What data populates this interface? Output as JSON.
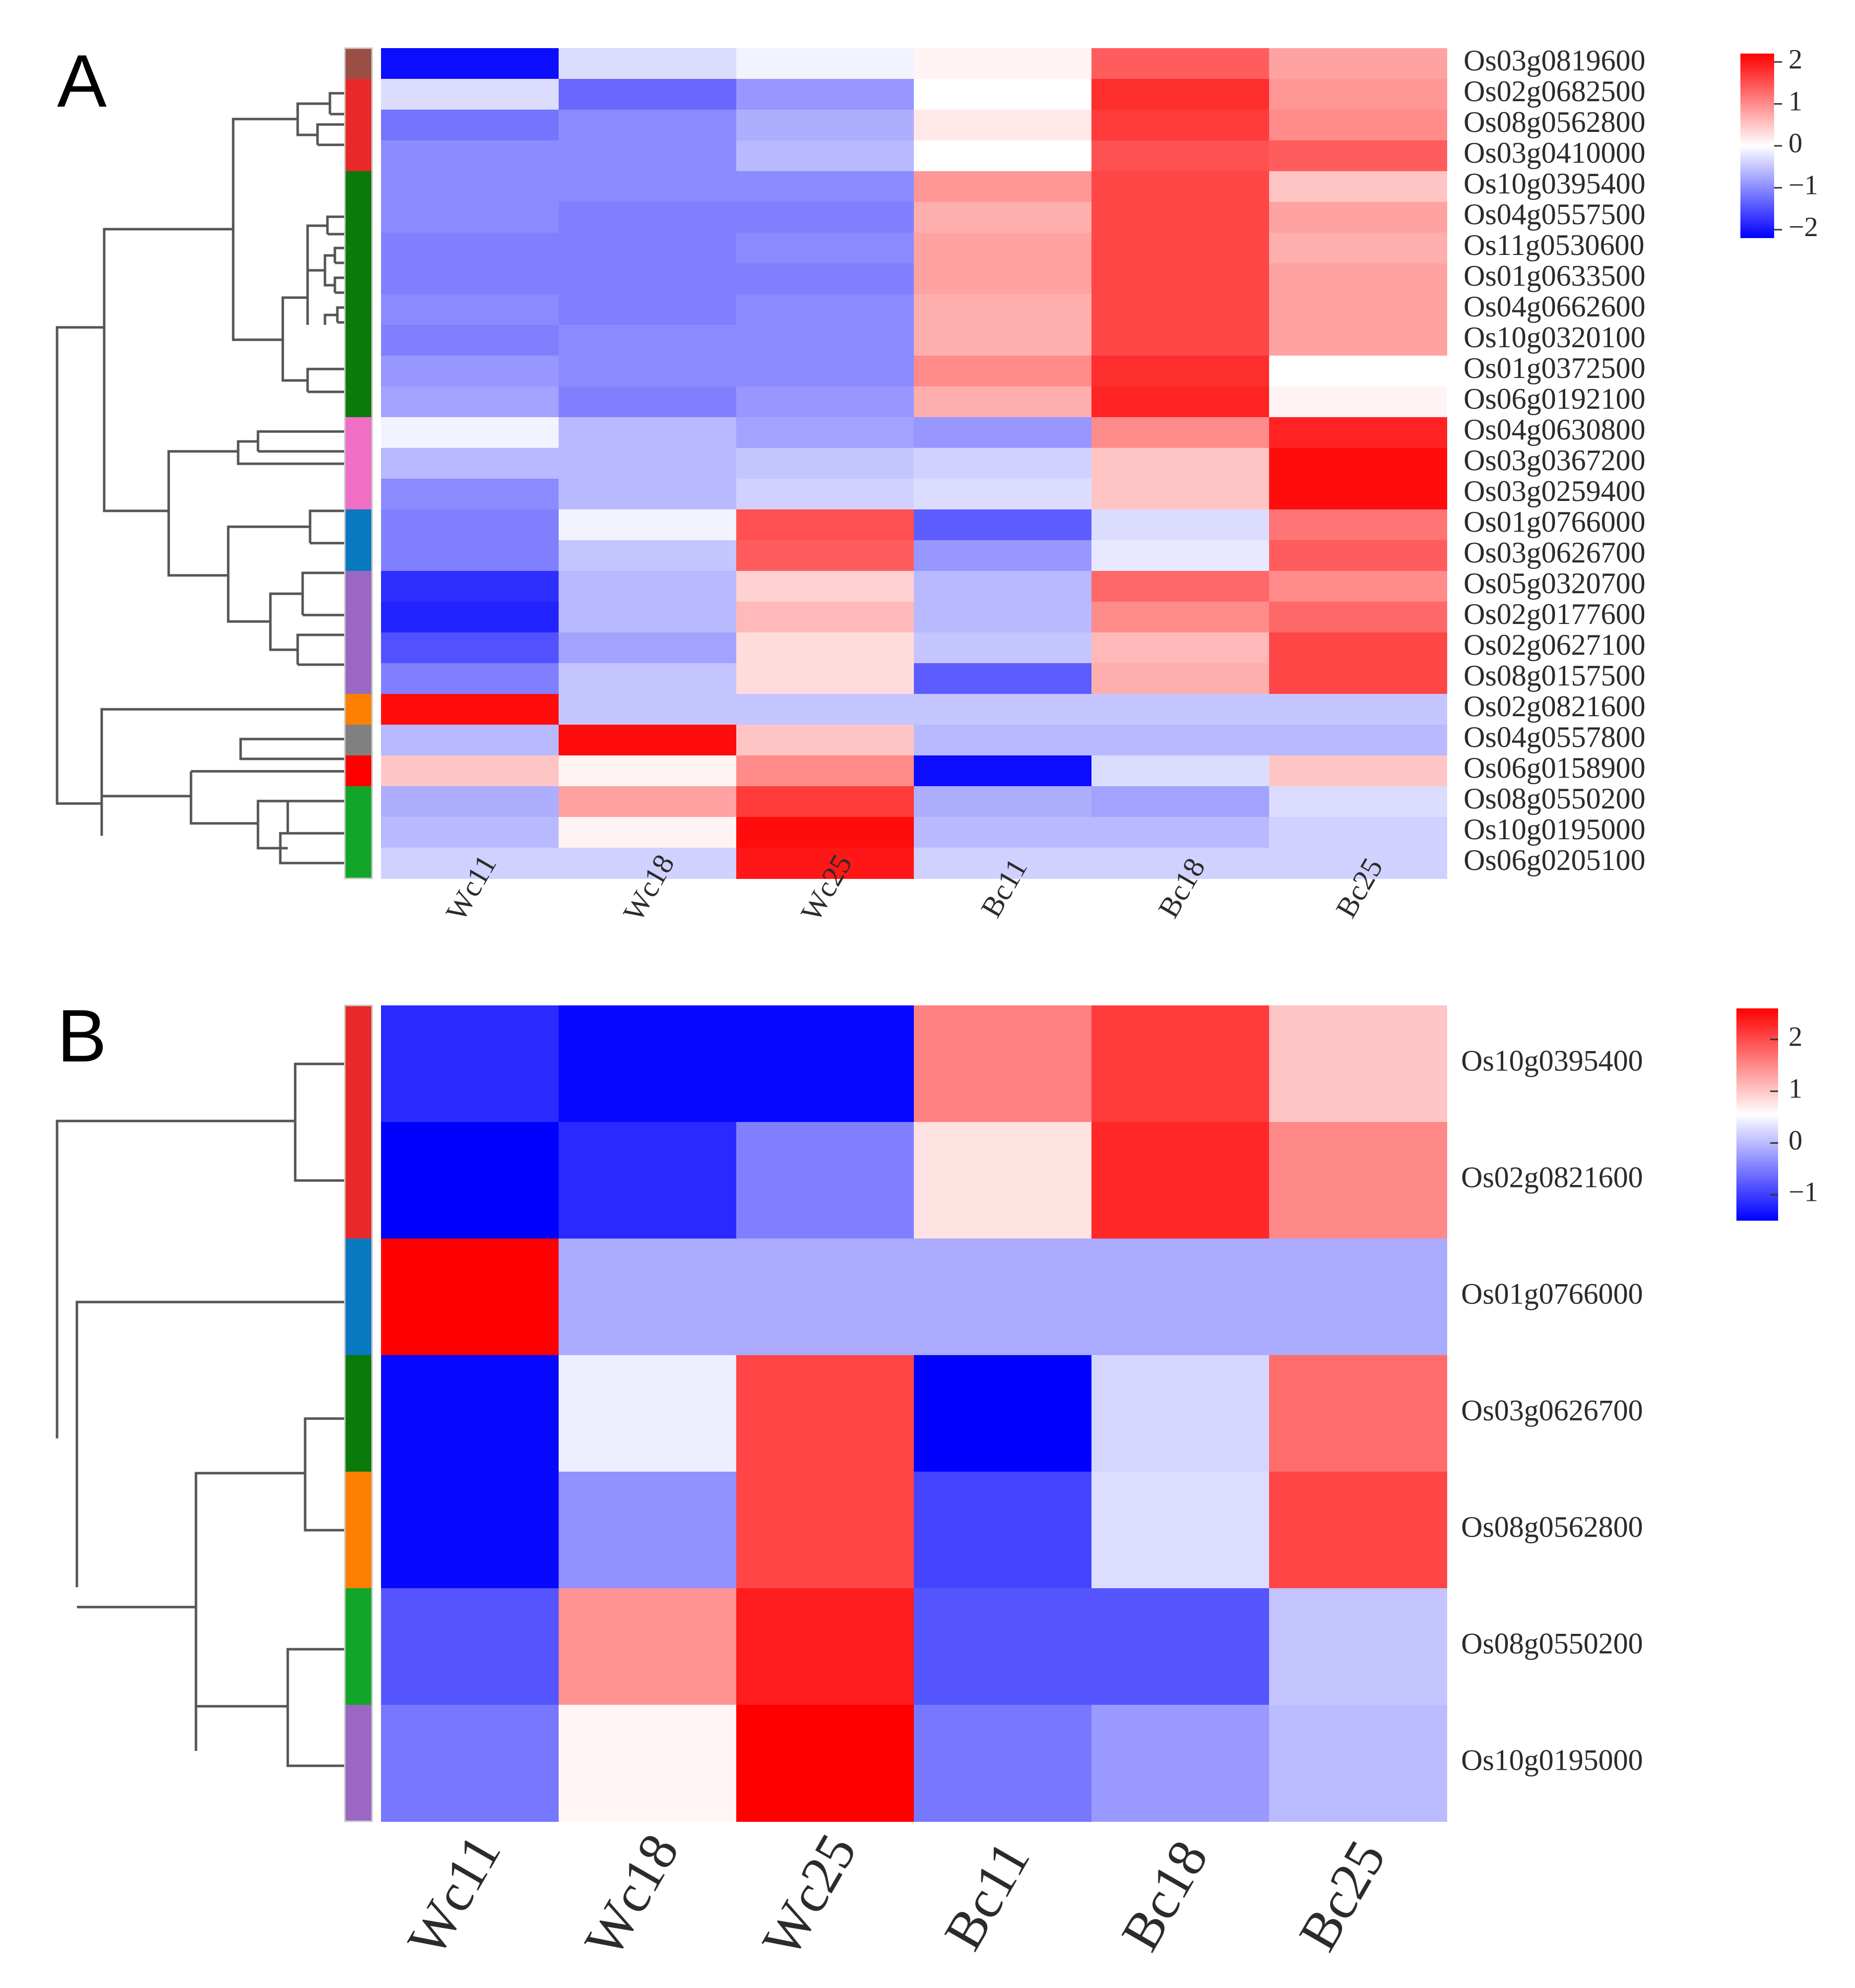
{
  "figure": {
    "panel_labels": [
      "A",
      "B"
    ]
  },
  "chart_data": [
    {
      "type": "heatmap",
      "panel": "A",
      "columns": [
        "Wc11",
        "Wc18",
        "Wc25",
        "Bc11",
        "Bc18",
        "Bc25"
      ],
      "rows": [
        "Os03g0819600",
        "Os02g0682500",
        "Os08g0562800",
        "Os03g0410000",
        "Os10g0395400",
        "Os04g0557500",
        "Os11g0530600",
        "Os01g0633500",
        "Os04g0662600",
        "Os10g0320100",
        "Os01g0372500",
        "Os06g0192100",
        "Os04g0630800",
        "Os03g0367200",
        "Os03g0259400",
        "Os01g0766000",
        "Os03g0626700",
        "Os05g0320700",
        "Os02g0177600",
        "Os02g0627100",
        "Os08g0157500",
        "Os02g0821600",
        "Os04g0557800",
        "Os06g0158900",
        "Os08g0550200",
        "Os10g0195000",
        "Os06g0205100"
      ],
      "values": [
        [
          -2.1,
          -0.3,
          -0.1,
          0.1,
          1.4,
          0.8
        ],
        [
          -0.3,
          -1.3,
          -0.9,
          0.0,
          1.8,
          0.9
        ],
        [
          -1.2,
          -1.0,
          -0.7,
          0.2,
          1.7,
          1.0
        ],
        [
          -1.0,
          -1.0,
          -0.6,
          0.0,
          1.5,
          1.4
        ],
        [
          -1.0,
          -1.0,
          -1.0,
          0.9,
          1.6,
          0.5
        ],
        [
          -1.0,
          -1.1,
          -1.1,
          0.7,
          1.6,
          0.8
        ],
        [
          -1.1,
          -1.1,
          -1.0,
          0.8,
          1.6,
          0.7
        ],
        [
          -1.1,
          -1.1,
          -1.1,
          0.8,
          1.6,
          0.8
        ],
        [
          -1.0,
          -1.1,
          -1.0,
          0.7,
          1.6,
          0.8
        ],
        [
          -1.1,
          -1.0,
          -1.0,
          0.7,
          1.6,
          0.8
        ],
        [
          -0.9,
          -1.0,
          -1.0,
          1.0,
          1.8,
          0.0
        ],
        [
          -0.8,
          -1.1,
          -0.9,
          0.7,
          1.9,
          0.1
        ],
        [
          -0.1,
          -0.6,
          -0.8,
          -0.9,
          1.0,
          1.9
        ],
        [
          -0.6,
          -0.6,
          -0.5,
          -0.4,
          0.5,
          2.1
        ],
        [
          -1.0,
          -0.6,
          -0.4,
          -0.3,
          0.5,
          2.1
        ],
        [
          -1.1,
          -0.1,
          1.5,
          -1.4,
          -0.3,
          1.2
        ],
        [
          -1.1,
          -0.5,
          1.4,
          -0.9,
          -0.2,
          1.4
        ],
        [
          -1.8,
          -0.6,
          0.4,
          -0.6,
          1.3,
          1.0
        ],
        [
          -1.9,
          -0.6,
          0.6,
          -0.6,
          1.0,
          1.3
        ],
        [
          -1.5,
          -0.8,
          0.3,
          -0.5,
          0.6,
          1.6
        ],
        [
          -1.1,
          -0.5,
          0.3,
          -1.4,
          0.7,
          1.6
        ],
        [
          2.1,
          -0.5,
          -0.5,
          -0.5,
          -0.5,
          -0.5
        ],
        [
          -0.6,
          2.1,
          0.5,
          -0.6,
          -0.6,
          -0.6
        ],
        [
          0.5,
          0.1,
          1.0,
          -2.1,
          -0.3,
          0.5
        ],
        [
          -0.7,
          0.8,
          1.7,
          -0.7,
          -0.8,
          -0.3
        ],
        [
          -0.6,
          0.1,
          2.1,
          -0.6,
          -0.6,
          -0.4
        ],
        [
          -0.4,
          -0.4,
          2.0,
          -0.4,
          -0.4,
          -0.4
        ]
      ],
      "group_colors": [
        "#9b4f44",
        "#e8282b",
        "#e8282b",
        "#e8282b",
        "#0a7a0a",
        "#0a7a0a",
        "#0a7a0a",
        "#0a7a0a",
        "#0a7a0a",
        "#0a7a0a",
        "#0a7a0a",
        "#0a7a0a",
        "#f06ec4",
        "#f06ec4",
        "#f06ec4",
        "#0879be",
        "#0879be",
        "#9a68c2",
        "#9a68c2",
        "#9a68c2",
        "#9a68c2",
        "#ff8000",
        "#808080",
        "#ff0000",
        "#11a62a",
        "#11a62a",
        "#11a62a"
      ],
      "legend": {
        "type": "colorbar",
        "range": [
          -2.2,
          2.2
        ],
        "ticks": [
          "2",
          "1",
          "0",
          "−1",
          "−2"
        ],
        "tick_values": [
          2,
          1,
          0,
          -1,
          -2
        ],
        "placement": "top-right"
      },
      "colors": {
        "low": "#0000ff",
        "mid": "#ffffff",
        "high": "#ff0000"
      }
    },
    {
      "type": "heatmap",
      "panel": "B",
      "columns": [
        "Wc11",
        "Wc18",
        "Wc25",
        "Bc11",
        "Bc18",
        "Bc25"
      ],
      "rows": [
        "Os10g0395400",
        "Os02g0821600",
        "Os01g0766000",
        "Os03g0626700",
        "Os08g0562800",
        "Os08g0550200",
        "Os10g0195000"
      ],
      "values": [
        [
          -1.25,
          -1.45,
          -1.45,
          1.3,
          2.0,
          0.6
        ],
        [
          -1.5,
          -1.25,
          -0.75,
          0.3,
          2.2,
          1.2
        ],
        [
          2.6,
          -0.5,
          -0.5,
          -0.5,
          -0.5,
          -0.5
        ],
        [
          -1.45,
          -0.1,
          1.9,
          -1.5,
          -0.25,
          1.5
        ],
        [
          -1.45,
          -0.65,
          1.9,
          -1.1,
          -0.2,
          1.9
        ],
        [
          -1.0,
          1.1,
          2.3,
          -1.0,
          -1.0,
          -0.35
        ],
        [
          -0.8,
          0.1,
          2.6,
          -0.8,
          -0.6,
          -0.4
        ]
      ],
      "group_colors": [
        "#e8282b",
        "#e8282b",
        "#0879be",
        "#0a7a0a",
        "#ff8000",
        "#11a62a",
        "#9a68c2"
      ],
      "legend": {
        "type": "colorbar",
        "range": [
          -1.5,
          2.6
        ],
        "ticks": [
          "2",
          "1",
          "0",
          "−1"
        ],
        "tick_values": [
          2,
          1,
          0,
          -1
        ],
        "placement": "top-right"
      },
      "colors": {
        "low": "#0000ff",
        "mid": "#ffffff",
        "high": "#ff0000"
      }
    }
  ]
}
